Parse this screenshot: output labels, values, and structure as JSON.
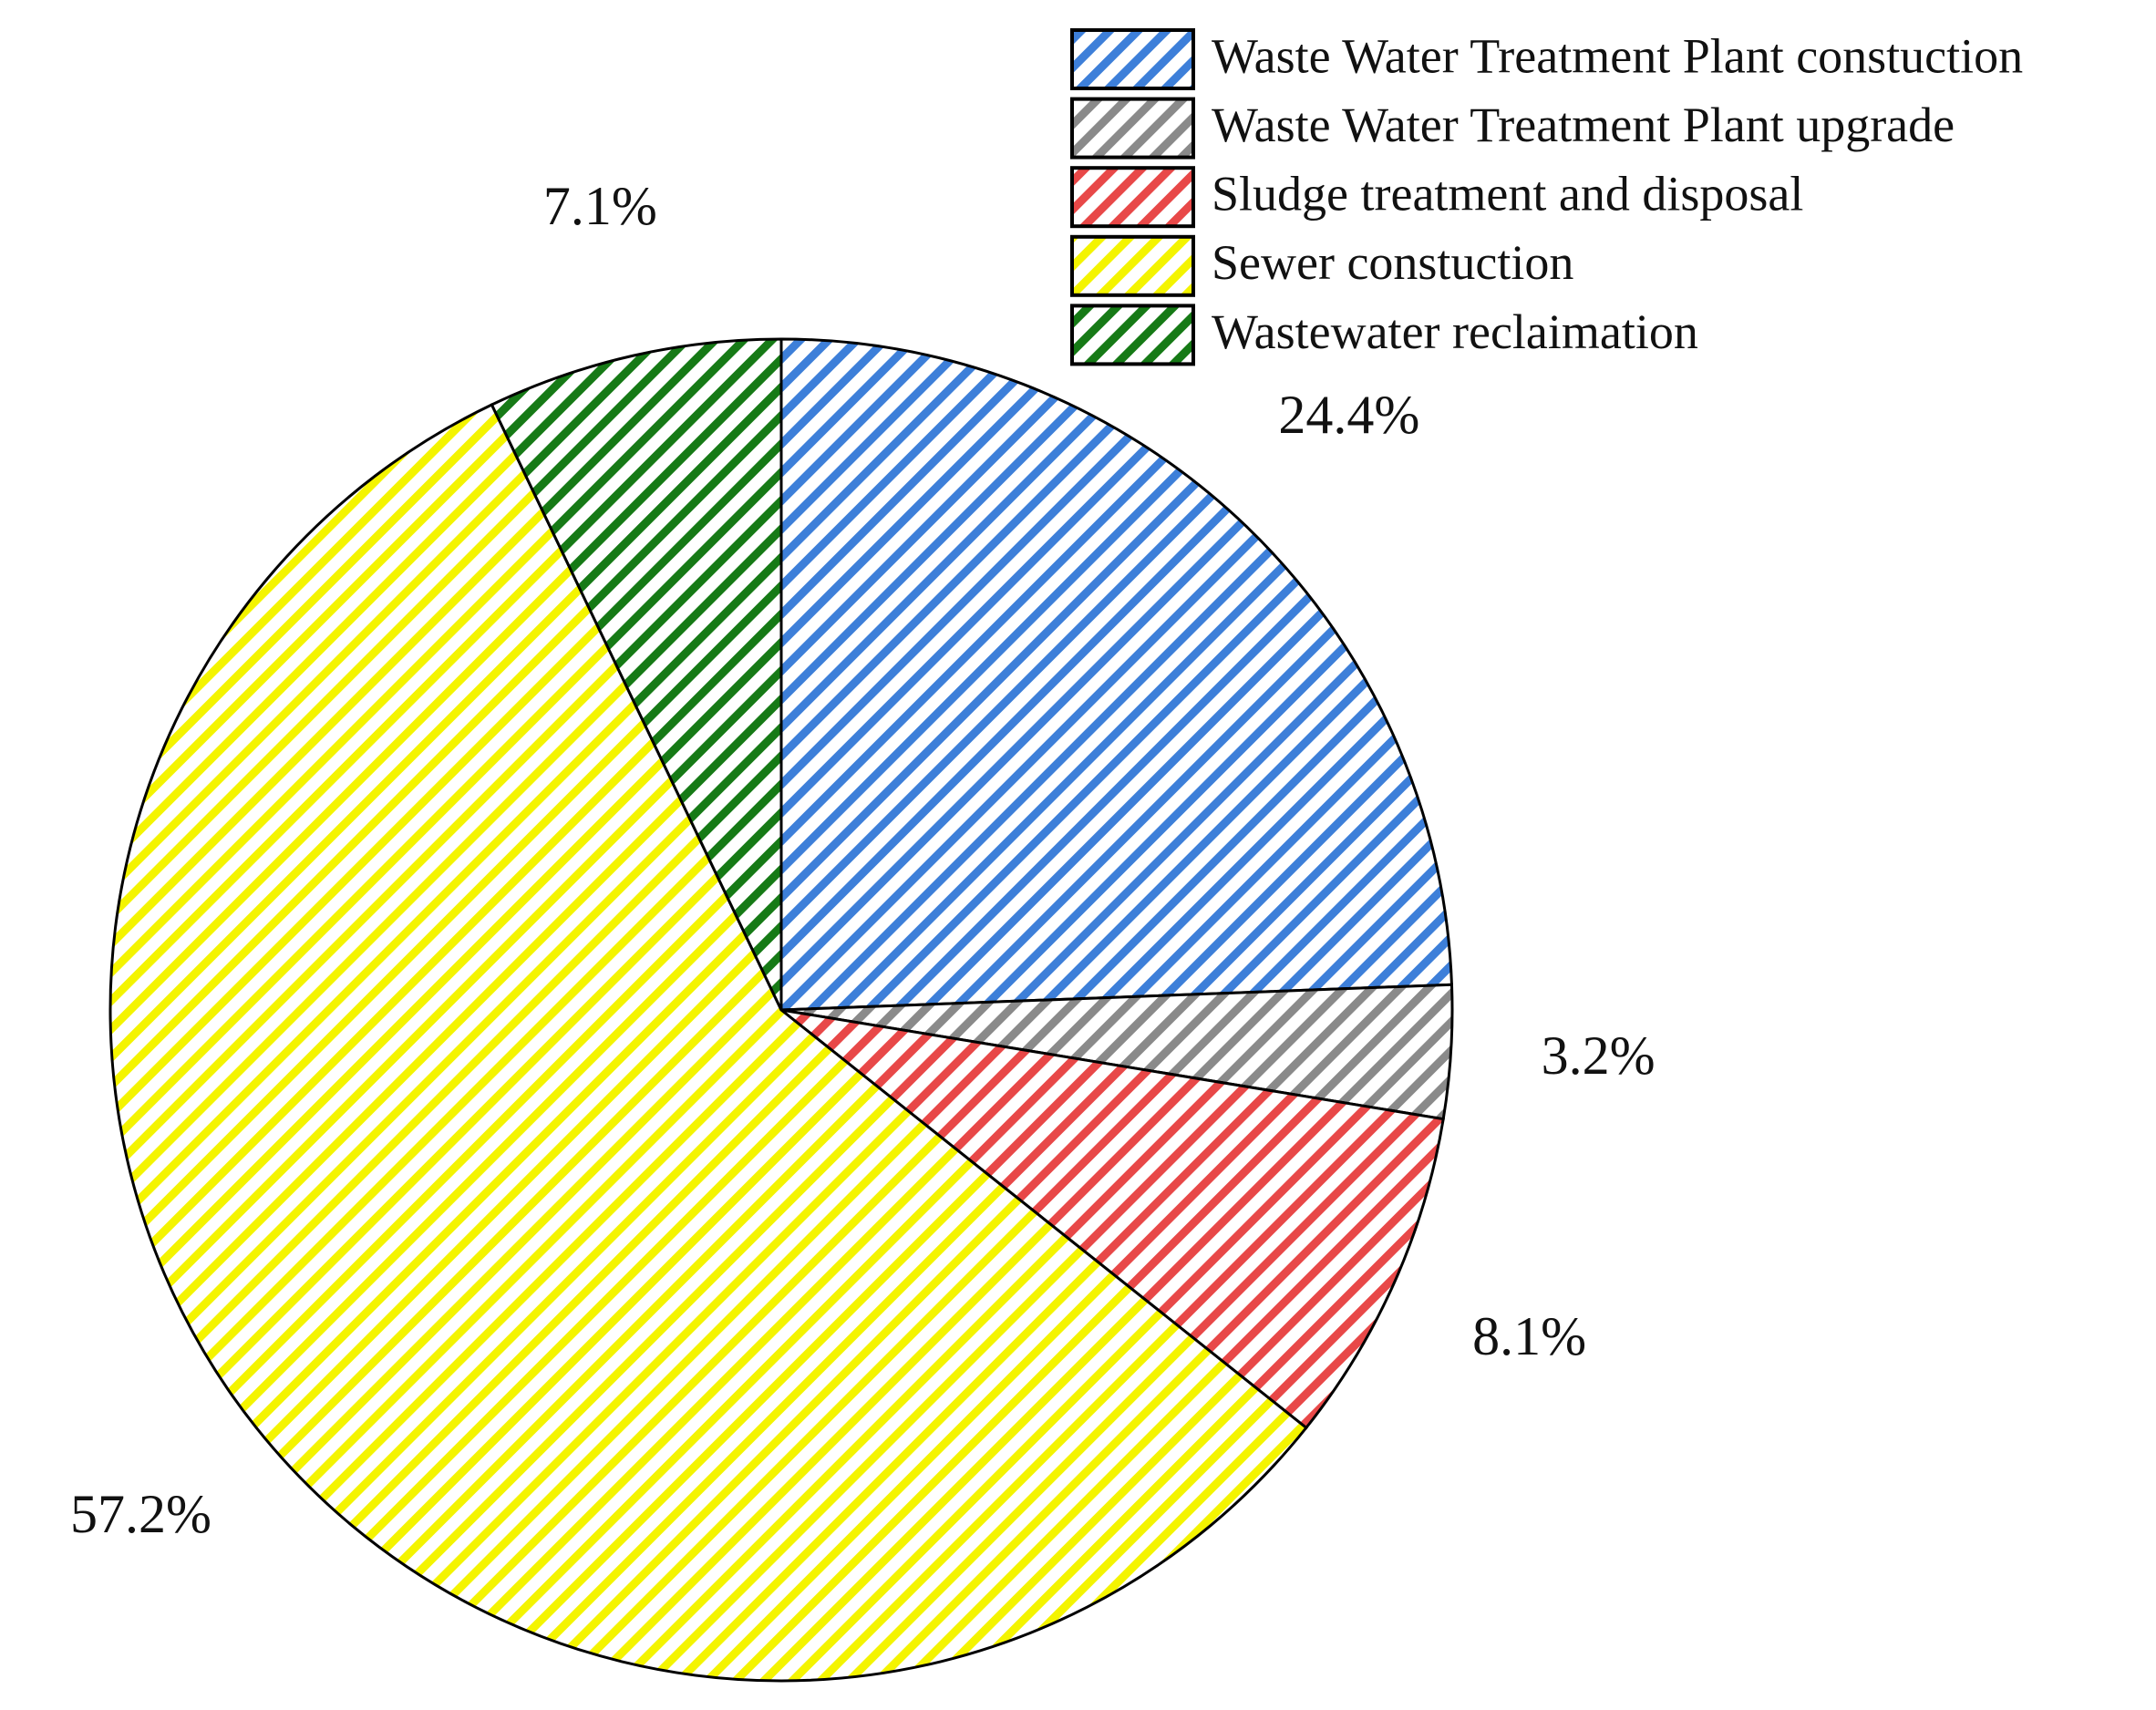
{
  "chart_data": {
    "type": "pie",
    "categories": [
      "Waste Water Treatment Plant constuction",
      "Waste Water Treatment Plant upgrade",
      "Sludge treatment and disposal",
      "Sewer constuction",
      "Wastewater reclaimation"
    ],
    "values": [
      24.4,
      3.2,
      8.1,
      57.2,
      7.1
    ],
    "value_labels": [
      "24.4%",
      "3.2%",
      "8.1%",
      "57.2%",
      "7.1%"
    ],
    "colors": [
      "#3d7fd9",
      "#8a8a8a",
      "#e84848",
      "#f4f400",
      "#167a16"
    ],
    "legend": "top-right"
  }
}
